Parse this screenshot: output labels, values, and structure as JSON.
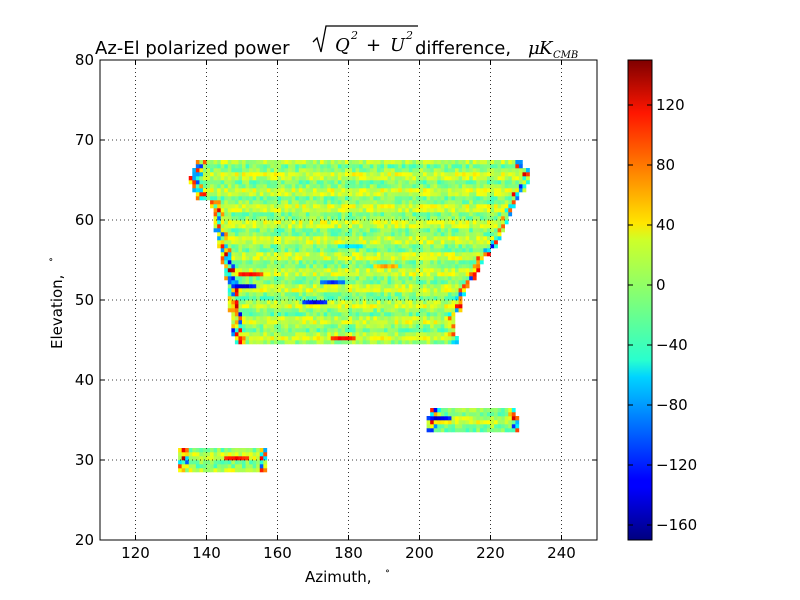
{
  "chart_data": {
    "type": "heatmap",
    "title": {
      "prefix": "Az-El polarized power ",
      "math_q": "Q",
      "math_u": "U",
      "sup": "2",
      "plus": "+",
      "suffix": " difference, ",
      "mu": "μ",
      "k": "K",
      "k_sub": "CMB"
    },
    "xlabel": "Azimuth, ",
    "xlabel_unit": "∘",
    "ylabel": "Elevation, ",
    "ylabel_unit": "∘",
    "xlim": [
      110,
      250
    ],
    "ylim": [
      20,
      80
    ],
    "xticks": [
      120,
      140,
      160,
      180,
      200,
      220,
      240
    ],
    "yticks": [
      20,
      30,
      40,
      50,
      60,
      70,
      80
    ],
    "grid": true,
    "colormap": "jet",
    "colorbar": {
      "min": -170,
      "max": 150,
      "ticks": [
        "120",
        "80",
        "40",
        "0",
        "−40",
        "−80",
        "−120",
        "−160"
      ],
      "tick_values": [
        120,
        80,
        40,
        0,
        -40,
        -80,
        -120,
        -160
      ]
    },
    "regions": [
      {
        "name_hint": "main",
        "rows": [
          [
            45,
            148,
            211
          ],
          [
            46,
            147,
            210
          ],
          [
            47,
            147,
            210
          ],
          [
            48,
            147,
            210
          ],
          [
            49,
            146,
            212
          ],
          [
            50,
            146,
            212
          ],
          [
            51,
            146,
            213
          ],
          [
            52,
            146,
            214
          ],
          [
            53,
            145,
            216
          ],
          [
            54,
            145,
            217
          ],
          [
            55,
            144,
            218
          ],
          [
            56,
            144,
            220
          ],
          [
            57,
            143,
            222
          ],
          [
            58,
            143,
            223
          ],
          [
            59,
            142,
            224
          ],
          [
            60,
            142,
            225
          ],
          [
            61,
            142,
            226
          ],
          [
            62,
            141,
            227
          ],
          [
            63,
            137,
            228
          ],
          [
            64,
            136,
            230
          ],
          [
            65,
            135,
            231
          ],
          [
            66,
            136,
            231
          ],
          [
            67,
            137,
            229
          ]
        ],
        "notes": "composite outline approximating the upper block from az 135-231"
      },
      {
        "name_hint": "right-strip",
        "rows": [
          [
            34,
            202,
            228
          ],
          [
            35,
            202,
            228
          ],
          [
            36,
            203,
            227
          ]
        ]
      },
      {
        "name_hint": "left-strip",
        "rows": [
          [
            29,
            132,
            157
          ],
          [
            30,
            132,
            157
          ],
          [
            31,
            132,
            157
          ]
        ]
      }
    ],
    "strong_features": [
      {
        "az": 170,
        "el": 49.5,
        "value": -140
      },
      {
        "az": 175,
        "el": 52,
        "value": -120
      },
      {
        "az": 178,
        "el": 45,
        "value": 110
      },
      {
        "az": 150,
        "el": 51.5,
        "value": -150
      },
      {
        "az": 152,
        "el": 53,
        "value": 120
      },
      {
        "az": 205,
        "el": 35,
        "value": -150
      },
      {
        "az": 148,
        "el": 30,
        "value": 120
      },
      {
        "az": 180,
        "el": 56.5,
        "value": -60
      },
      {
        "az": 190,
        "el": 54,
        "value": 60
      }
    ]
  }
}
